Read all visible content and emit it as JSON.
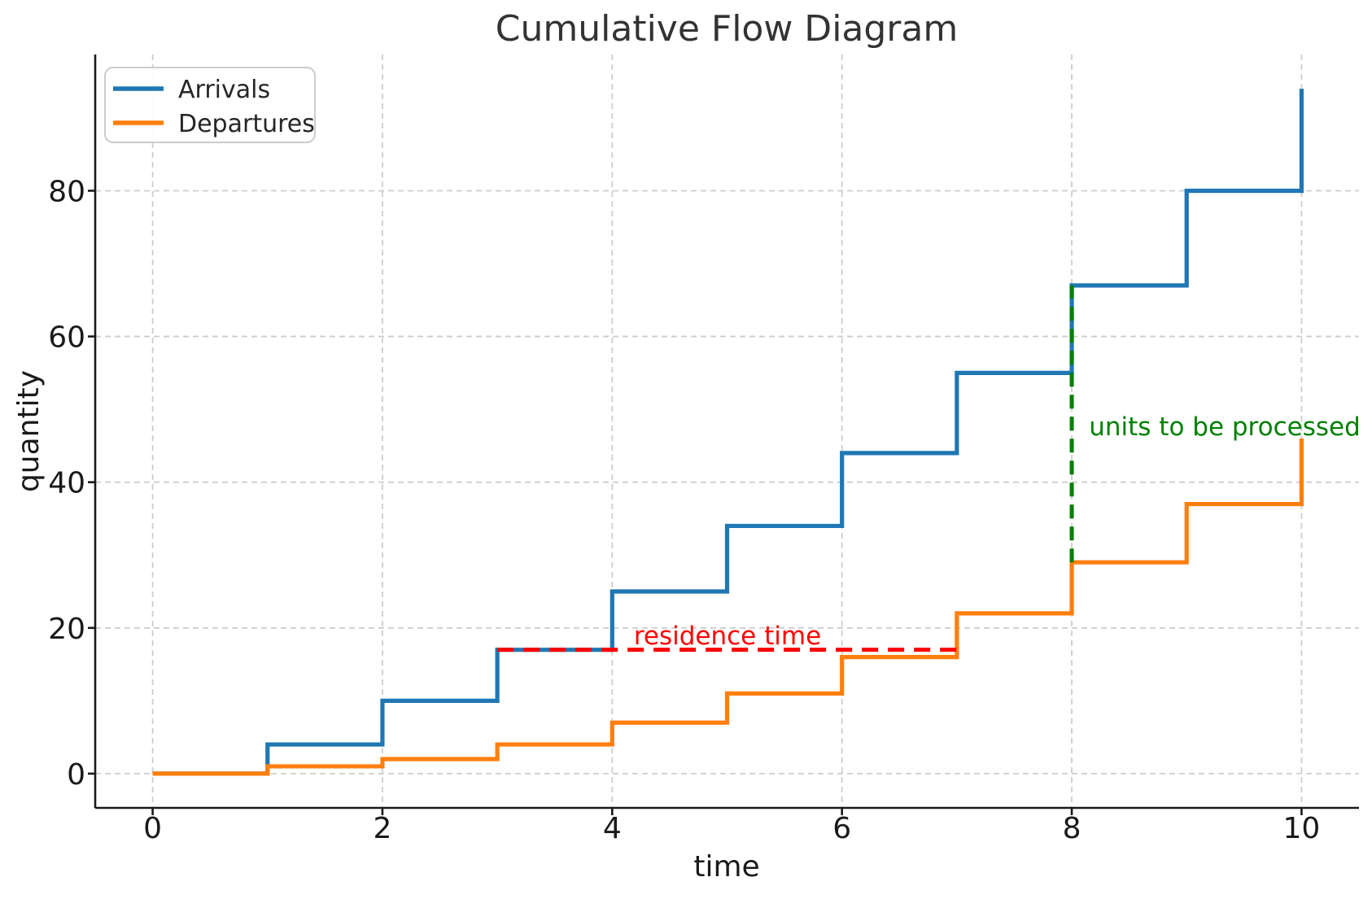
{
  "chart_data": {
    "type": "line",
    "line_style": "step-post",
    "title": "Cumulative Flow Diagram",
    "xlabel": "time",
    "ylabel": "quantity",
    "x": [
      0,
      1,
      2,
      3,
      4,
      5,
      6,
      7,
      8,
      9,
      10
    ],
    "series": [
      {
        "name": "Arrivals",
        "color": "#1f77b4",
        "values": [
          0,
          4,
          10,
          17,
          25,
          34,
          44,
          55,
          67,
          80,
          94
        ]
      },
      {
        "name": "Departures",
        "color": "#ff7f0e",
        "values": [
          0,
          1,
          2,
          4,
          7,
          11,
          16,
          22,
          29,
          37,
          46
        ]
      }
    ],
    "xticks": [
      0,
      2,
      4,
      6,
      8,
      10
    ],
    "yticks": [
      0,
      20,
      40,
      60,
      80
    ],
    "xlim": [
      -0.5,
      10.5
    ],
    "ylim": [
      -4.7,
      98.7
    ],
    "grid": true,
    "legend_position": "upper-left",
    "annotations": [
      {
        "type": "hline-segment",
        "label": "residence time",
        "color": "#ff0000",
        "y": 17,
        "x1": 3,
        "x2": 7
      },
      {
        "type": "vline-segment",
        "label": "units to be processed",
        "color": "#008000",
        "x": 8,
        "y1": 29,
        "y2": 67
      }
    ]
  }
}
